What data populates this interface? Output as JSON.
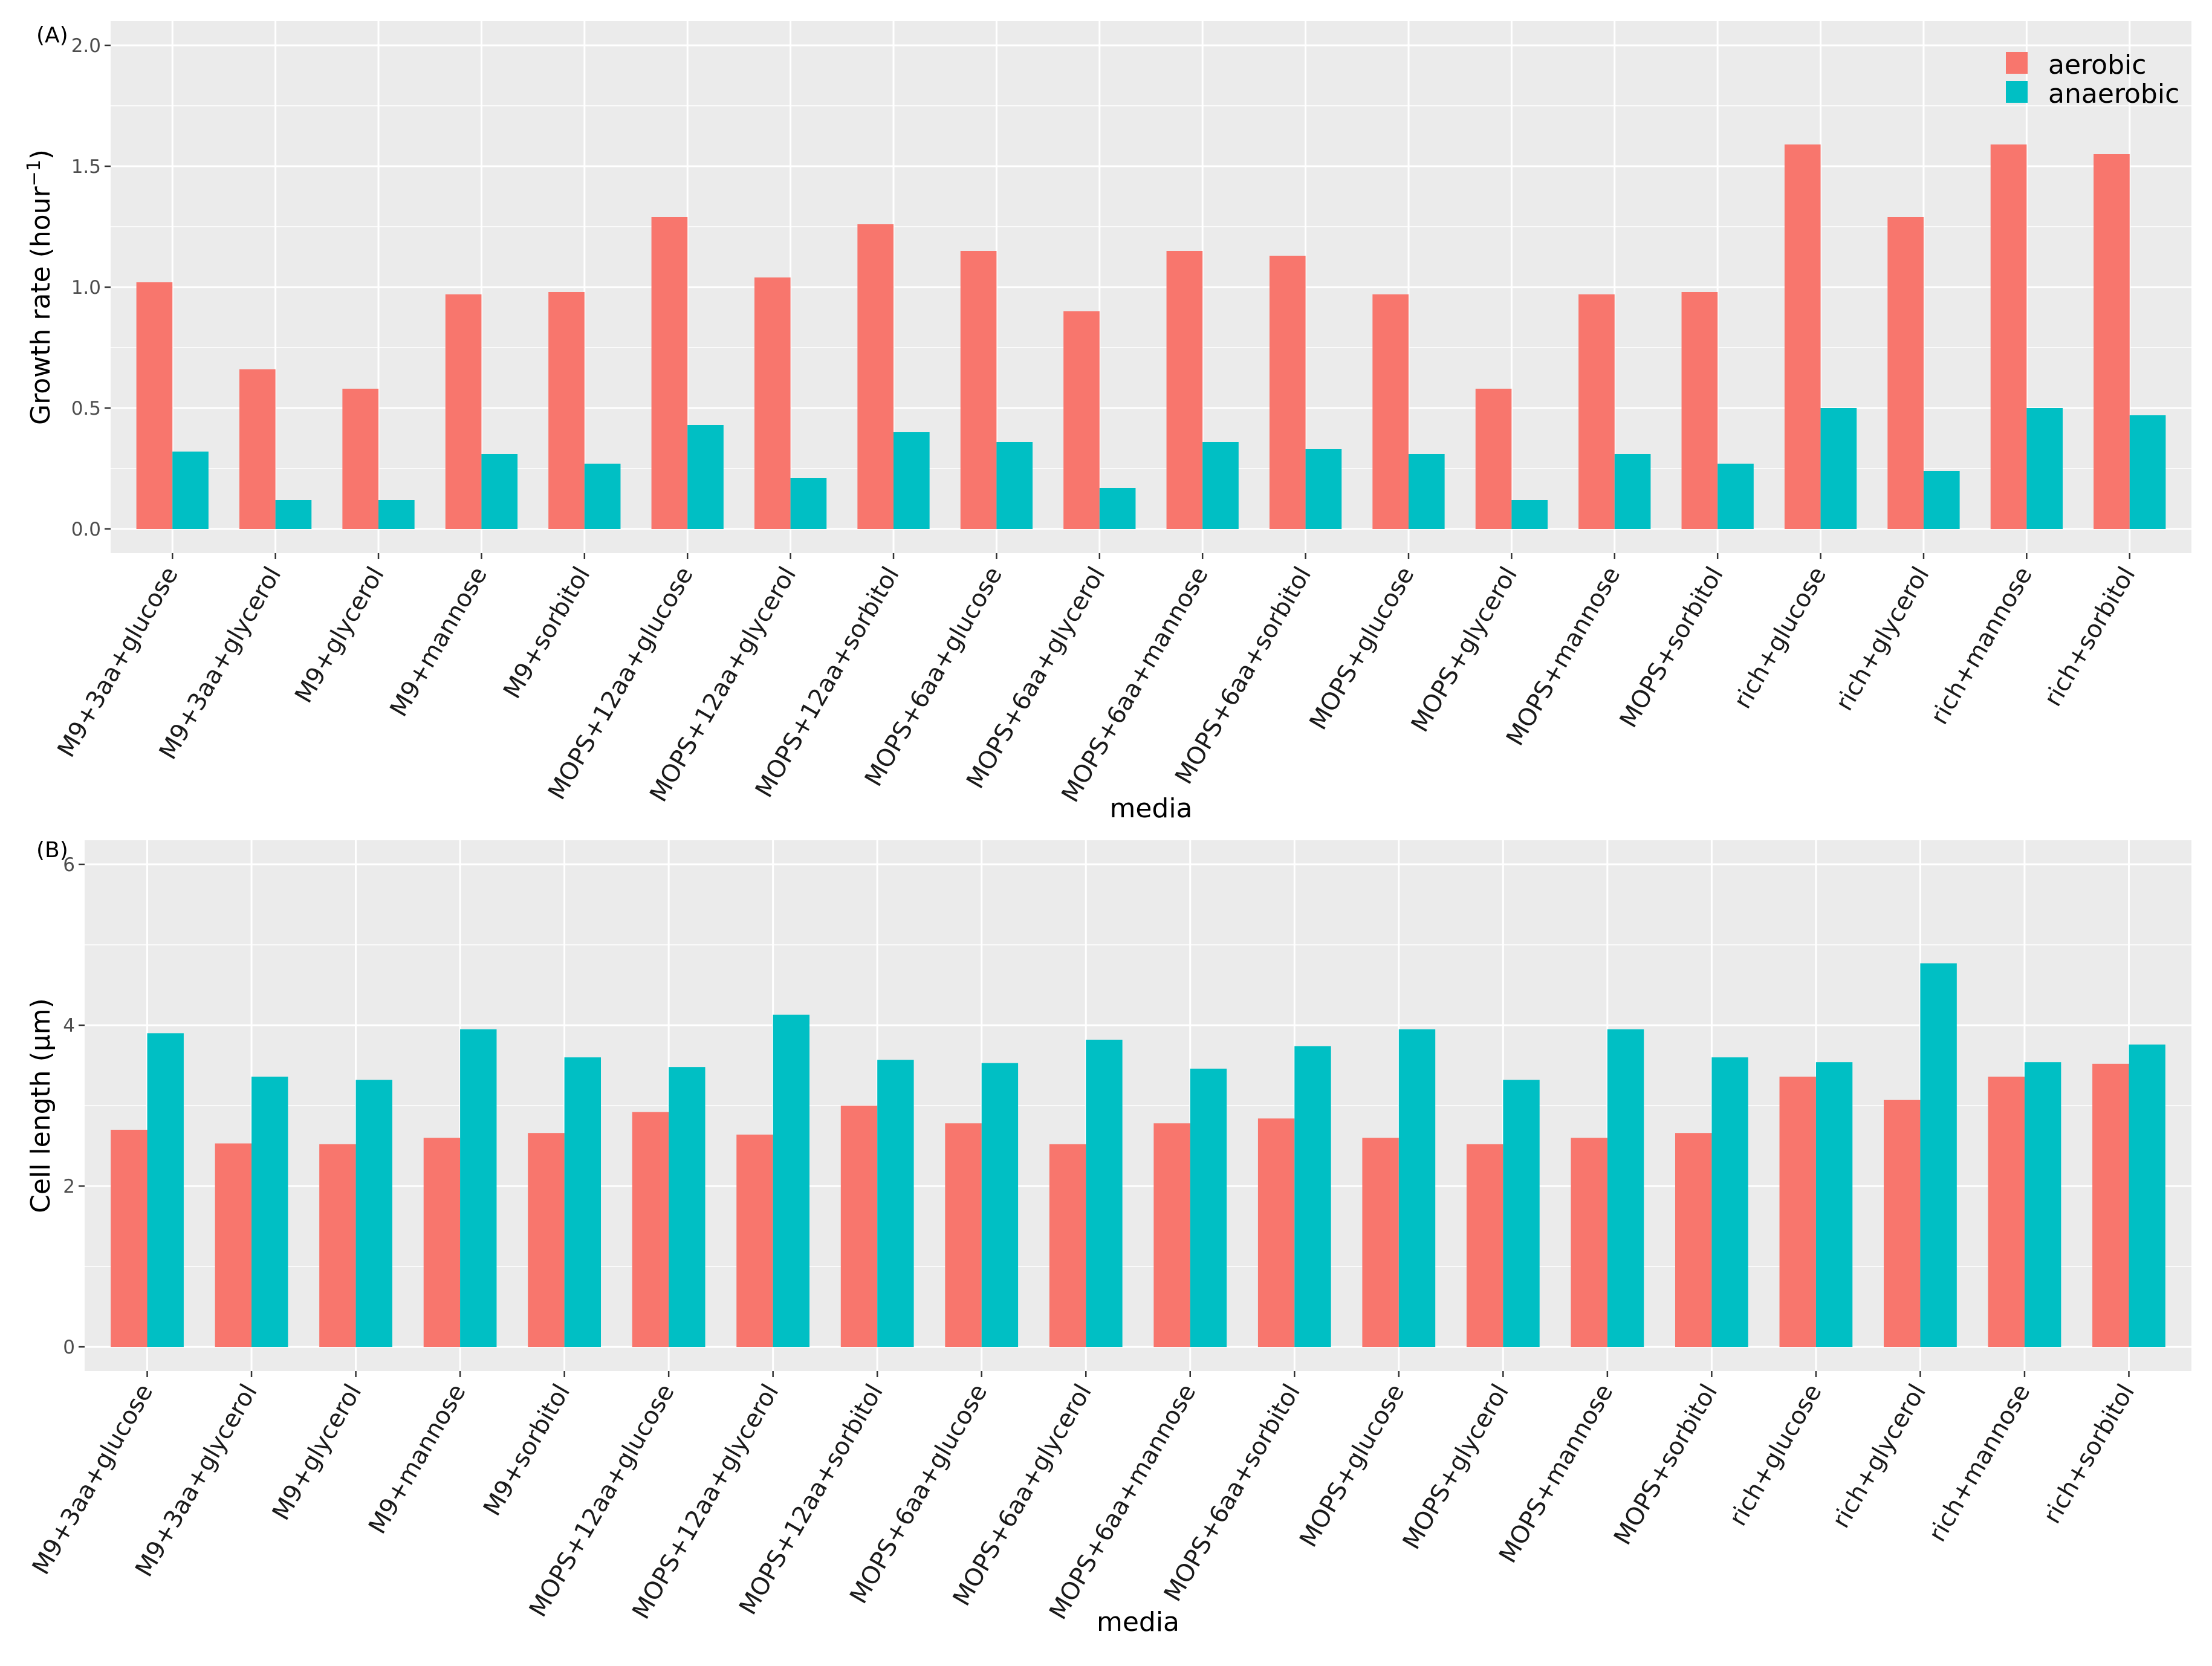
{
  "colors": {
    "aerobic": "#F8766D",
    "anaerobic": "#00BFC4",
    "panel_bg": "#EBEBEB",
    "grid": "#FFFFFF"
  },
  "legend": {
    "entries": [
      "aerobic",
      "anaerobic"
    ],
    "placement": "top-right inside panel A"
  },
  "chart_data": [
    {
      "type": "bar",
      "panel_tag": "(A)",
      "xlabel": "media",
      "ylabel": "Growth rate (hour",
      "ylabel_sup": "−1",
      "ylabel_close": ")",
      "ylim": [
        -0.1,
        2.1
      ],
      "yticks": [
        0.0,
        0.5,
        1.0,
        1.5,
        2.0
      ],
      "ytick_labels": [
        "0.0",
        "0.5",
        "1.0",
        "1.5",
        "2.0"
      ],
      "grid": true,
      "categories": [
        "M9+3aa+glucose",
        "M9+3aa+glycerol",
        "M9+glycerol",
        "M9+mannose",
        "M9+sorbitol",
        "MOPS+12aa+glucose",
        "MOPS+12aa+glycerol",
        "MOPS+12aa+sorbitol",
        "MOPS+6aa+glucose",
        "MOPS+6aa+glycerol",
        "MOPS+6aa+mannose",
        "MOPS+6aa+sorbitol",
        "MOPS+glucose",
        "MOPS+glycerol",
        "MOPS+mannose",
        "MOPS+sorbitol",
        "rich+glucose",
        "rich+glycerol",
        "rich+mannose",
        "rich+sorbitol"
      ],
      "series": [
        {
          "name": "aerobic",
          "values": [
            1.02,
            0.66,
            0.58,
            0.97,
            0.98,
            1.29,
            1.04,
            1.26,
            1.15,
            0.9,
            1.15,
            1.13,
            0.97,
            0.58,
            0.97,
            0.98,
            1.59,
            1.29,
            1.59,
            1.55
          ]
        },
        {
          "name": "anaerobic",
          "values": [
            0.32,
            0.12,
            0.12,
            0.31,
            0.27,
            0.43,
            0.21,
            0.4,
            0.36,
            0.17,
            0.36,
            0.33,
            0.31,
            0.12,
            0.31,
            0.27,
            0.5,
            0.24,
            0.5,
            0.47
          ]
        }
      ]
    },
    {
      "type": "bar",
      "panel_tag": "(B)",
      "xlabel": "media",
      "ylabel": "Cell length (μm)",
      "ylim": [
        -0.3,
        6.3
      ],
      "yticks": [
        0,
        2,
        4,
        6
      ],
      "ytick_labels": [
        "0",
        "2",
        "4",
        "6"
      ],
      "grid": true,
      "categories": [
        "M9+3aa+glucose",
        "M9+3aa+glycerol",
        "M9+glycerol",
        "M9+mannose",
        "M9+sorbitol",
        "MOPS+12aa+glucose",
        "MOPS+12aa+glycerol",
        "MOPS+12aa+sorbitol",
        "MOPS+6aa+glucose",
        "MOPS+6aa+glycerol",
        "MOPS+6aa+mannose",
        "MOPS+6aa+sorbitol",
        "MOPS+glucose",
        "MOPS+glycerol",
        "MOPS+mannose",
        "MOPS+sorbitol",
        "rich+glucose",
        "rich+glycerol",
        "rich+mannose",
        "rich+sorbitol"
      ],
      "series": [
        {
          "name": "aerobic",
          "values": [
            2.7,
            2.53,
            2.52,
            2.6,
            2.66,
            2.92,
            2.64,
            3.0,
            2.78,
            2.52,
            2.78,
            2.84,
            2.6,
            2.52,
            2.6,
            2.66,
            3.36,
            3.07,
            3.36,
            3.52
          ]
        },
        {
          "name": "anaerobic",
          "values": [
            3.9,
            3.36,
            3.32,
            3.95,
            3.6,
            3.48,
            4.13,
            3.57,
            3.53,
            3.82,
            3.46,
            3.74,
            3.95,
            3.32,
            3.95,
            3.6,
            3.54,
            4.77,
            3.54,
            3.76
          ]
        }
      ]
    }
  ]
}
